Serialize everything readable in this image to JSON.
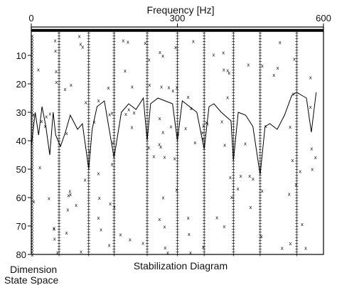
{
  "chart_data": {
    "type": "scatter",
    "title": "Stabilization Diagram",
    "xlabel": "Frequency [Hz]",
    "ylabel_line1": "State Space",
    "ylabel_line2": "Dimension",
    "xlim": [
      0,
      600
    ],
    "ylim": [
      0,
      80
    ],
    "x_axis_position": "top",
    "y_axis_position": "left",
    "x_ticks": [
      0,
      300,
      600
    ],
    "y_ticks": [
      10,
      20,
      30,
      40,
      50,
      60,
      70,
      80
    ],
    "grid": false,
    "legend": "none",
    "stable_pole_columns_hz": [
      57,
      118,
      170,
      238,
      300,
      355,
      415,
      470,
      545
    ],
    "mode_indicator_curve": {
      "name": "",
      "x": [
        0,
        8,
        15,
        22,
        30,
        38,
        45,
        50,
        55,
        60,
        70,
        80,
        95,
        105,
        118,
        125,
        135,
        150,
        170,
        185,
        200,
        215,
        230,
        238,
        245,
        260,
        275,
        290,
        300,
        310,
        325,
        340,
        355,
        365,
        375,
        390,
        410,
        415,
        425,
        440,
        455,
        470,
        480,
        490,
        505,
        520,
        535,
        545,
        555,
        565,
        575,
        580,
        585
      ],
      "y": [
        42,
        30,
        38,
        28,
        35,
        45,
        30,
        38,
        40,
        42,
        37,
        31,
        36,
        34,
        50,
        36,
        28,
        26,
        46,
        30,
        27,
        29,
        25,
        40,
        27,
        25,
        26,
        27,
        40,
        26,
        28,
        30,
        43,
        28,
        27,
        30,
        33,
        47,
        30,
        31,
        35,
        52,
        35,
        34,
        36,
        31,
        24,
        23,
        24,
        25,
        37,
        30,
        23
      ]
    },
    "pole_markers": {
      "stable_symbol": "+",
      "unstable_symbol": "x"
    },
    "color": "#000000"
  }
}
